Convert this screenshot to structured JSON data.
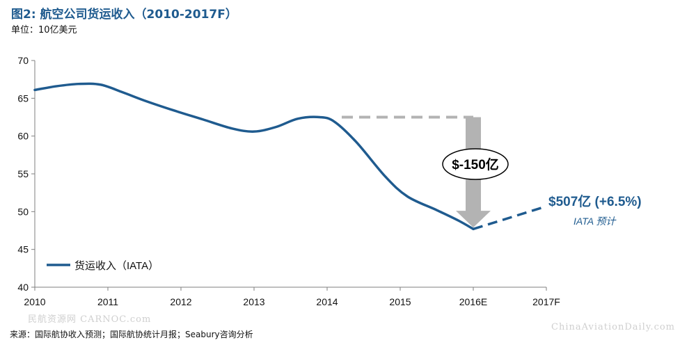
{
  "header": {
    "title": "图2: 航空公司货运收入（2010-2017F）",
    "unit": "单位：10亿美元"
  },
  "footer": {
    "source": "来源：国际航协收入预测；国际航协统计月报；Seabury咨询分析"
  },
  "watermarks": {
    "left": "民航资源网 CARNOC.com",
    "right": "ChinaAviationDaily.com"
  },
  "colors": {
    "line": "#1f5b8f",
    "dash_gray": "#b3b3b3",
    "arrow_gray": "#b3b3b3",
    "axis": "#7f7f7f"
  },
  "chart_data": {
    "type": "line",
    "x_labels": [
      "2010",
      "2011",
      "2012",
      "2013",
      "2014",
      "2015",
      "2016E",
      "2017F"
    ],
    "ylim": [
      40,
      70
    ],
    "yticks": [
      40,
      45,
      50,
      55,
      60,
      65,
      70
    ],
    "grid": false,
    "legend": {
      "label": "货运收入（IATA）",
      "position": "bottom-left"
    },
    "series": [
      {
        "name": "货运收入（IATA）",
        "points": [
          [
            0.0,
            66.1
          ],
          [
            0.3,
            66.6
          ],
          [
            0.6,
            66.9
          ],
          [
            0.9,
            66.8
          ],
          [
            1.2,
            65.8
          ],
          [
            1.5,
            64.7
          ],
          [
            1.9,
            63.4
          ],
          [
            2.3,
            62.2
          ],
          [
            2.7,
            61.0
          ],
          [
            3.0,
            60.6
          ],
          [
            3.3,
            61.2
          ],
          [
            3.6,
            62.3
          ],
          [
            3.9,
            62.5
          ],
          [
            4.1,
            61.9
          ],
          [
            4.4,
            59.2
          ],
          [
            4.8,
            54.6
          ],
          [
            5.1,
            52.0
          ],
          [
            5.5,
            50.2
          ],
          [
            5.8,
            48.8
          ],
          [
            6.0,
            47.7
          ]
        ]
      },
      {
        "name": "forecast",
        "dashed": true,
        "points": [
          [
            6.0,
            47.7
          ],
          [
            7.0,
            50.7
          ]
        ]
      }
    ],
    "annotations": {
      "reference_level": {
        "y": 62.5,
        "x_from": 4.2,
        "x_to": 6.0
      },
      "arrow": {
        "x": 6.0,
        "from": 62.5,
        "to": 47.9
      },
      "drop_label": "$-150亿",
      "forecast_label": "$507亿 (+6.5%)",
      "forecast_sublabel": "IATA 预计"
    }
  }
}
